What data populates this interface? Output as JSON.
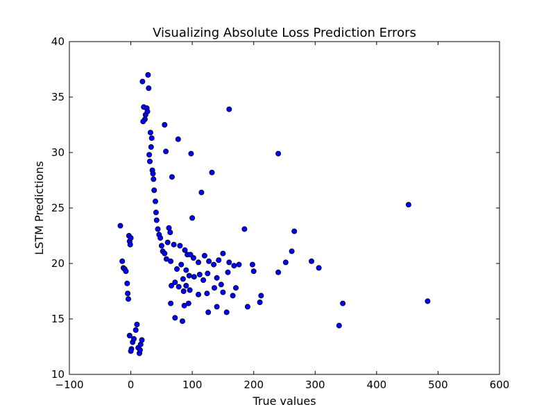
{
  "chart_data": {
    "type": "scatter",
    "title": "Visualizing Absolute Loss Prediction Errors",
    "xlabel": "True values",
    "ylabel": "LSTM Predictions",
    "xlim": [
      -100,
      600
    ],
    "ylim": [
      10,
      40
    ],
    "xticks": [
      -100,
      0,
      100,
      200,
      300,
      400,
      500,
      600
    ],
    "yticks": [
      10,
      15,
      20,
      25,
      30,
      35,
      40
    ],
    "xtick_labels": [
      "−100",
      "0",
      "100",
      "200",
      "300",
      "400",
      "500",
      "600"
    ],
    "ytick_labels": [
      "10",
      "15",
      "20",
      "25",
      "30",
      "35",
      "40"
    ],
    "grid": false,
    "marker_color": "#0000ff",
    "marker_edge_color": "#000000",
    "points": [
      [
        -17,
        23.4
      ],
      [
        -14,
        20.2
      ],
      [
        -12,
        19.6
      ],
      [
        -10,
        19.5
      ],
      [
        -8,
        19.3
      ],
      [
        -6,
        18.2
      ],
      [
        -5,
        17.3
      ],
      [
        -4,
        16.8
      ],
      [
        -3,
        22.5
      ],
      [
        -2,
        22.0
      ],
      [
        -1,
        21.7
      ],
      [
        0,
        22.3
      ],
      [
        -2,
        13.5
      ],
      [
        1,
        12.3
      ],
      [
        0,
        12.1
      ],
      [
        3,
        12.9
      ],
      [
        5,
        13.2
      ],
      [
        8,
        14.0
      ],
      [
        10,
        14.5
      ],
      [
        12,
        12.4
      ],
      [
        14,
        11.9
      ],
      [
        15,
        12.2
      ],
      [
        16,
        12.7
      ],
      [
        18,
        13.1
      ],
      [
        19,
        36.4
      ],
      [
        24,
        33.4
      ],
      [
        21,
        34.1
      ],
      [
        23,
        33.0
      ],
      [
        20,
        32.8
      ],
      [
        26,
        34.0
      ],
      [
        27,
        33.7
      ],
      [
        28,
        37.0
      ],
      [
        29,
        35.8
      ],
      [
        32,
        31.8
      ],
      [
        33,
        30.5
      ],
      [
        34,
        31.3
      ],
      [
        30,
        29.8
      ],
      [
        31,
        29.2
      ],
      [
        35,
        28.4
      ],
      [
        36,
        28.1
      ],
      [
        37,
        27.6
      ],
      [
        38,
        26.6
      ],
      [
        40,
        25.6
      ],
      [
        41,
        24.6
      ],
      [
        42,
        23.9
      ],
      [
        44,
        23.1
      ],
      [
        46,
        22.6
      ],
      [
        48,
        22.3
      ],
      [
        50,
        21.6
      ],
      [
        52,
        21.1
      ],
      [
        55,
        20.9
      ],
      [
        58,
        20.4
      ],
      [
        60,
        21.9
      ],
      [
        62,
        23.2
      ],
      [
        64,
        22.8
      ],
      [
        55,
        32.5
      ],
      [
        57,
        30.1
      ],
      [
        67,
        27.8
      ],
      [
        77,
        31.2
      ],
      [
        98,
        29.9
      ],
      [
        132,
        28.2
      ],
      [
        115,
        26.4
      ],
      [
        160,
        33.9
      ],
      [
        100,
        24.1
      ],
      [
        70,
        21.7
      ],
      [
        80,
        21.6
      ],
      [
        88,
        21.2
      ],
      [
        92,
        20.8
      ],
      [
        97,
        20.8
      ],
      [
        102,
        20.5
      ],
      [
        110,
        20.1
      ],
      [
        120,
        20.7
      ],
      [
        127,
        20.2
      ],
      [
        135,
        19.9
      ],
      [
        143,
        20.3
      ],
      [
        150,
        20.9
      ],
      [
        160,
        20.1
      ],
      [
        176,
        19.9
      ],
      [
        198,
        19.9
      ],
      [
        65,
        20.2
      ],
      [
        75,
        19.5
      ],
      [
        82,
        19.9
      ],
      [
        85,
        18.6
      ],
      [
        90,
        19.4
      ],
      [
        95,
        18.9
      ],
      [
        103,
        18.8
      ],
      [
        112,
        19.0
      ],
      [
        118,
        18.5
      ],
      [
        125,
        19.1
      ],
      [
        140,
        18.7
      ],
      [
        158,
        19.2
      ],
      [
        168,
        19.8
      ],
      [
        200,
        19.3
      ],
      [
        66,
        18.0
      ],
      [
        72,
        18.3
      ],
      [
        78,
        17.9
      ],
      [
        86,
        17.5
      ],
      [
        90,
        18.0
      ],
      [
        96,
        17.6
      ],
      [
        110,
        17.2
      ],
      [
        124,
        17.3
      ],
      [
        136,
        17.8
      ],
      [
        147,
        18.1
      ],
      [
        150,
        17.4
      ],
      [
        166,
        17.1
      ],
      [
        171,
        17.8
      ],
      [
        212,
        17.1
      ],
      [
        210,
        16.5
      ],
      [
        65,
        16.4
      ],
      [
        72,
        15.1
      ],
      [
        84,
        14.8
      ],
      [
        87,
        16.2
      ],
      [
        94,
        16.4
      ],
      [
        126,
        15.6
      ],
      [
        140,
        16.1
      ],
      [
        156,
        15.6
      ],
      [
        190,
        16.1
      ],
      [
        185,
        23.1
      ],
      [
        240,
        29.9
      ],
      [
        266,
        22.9
      ],
      [
        262,
        21.1
      ],
      [
        252,
        20.1
      ],
      [
        240,
        19.2
      ],
      [
        294,
        20.2
      ],
      [
        306,
        19.6
      ],
      [
        345,
        16.4
      ],
      [
        339,
        14.4
      ],
      [
        452,
        25.3
      ],
      [
        483,
        16.6
      ]
    ]
  }
}
